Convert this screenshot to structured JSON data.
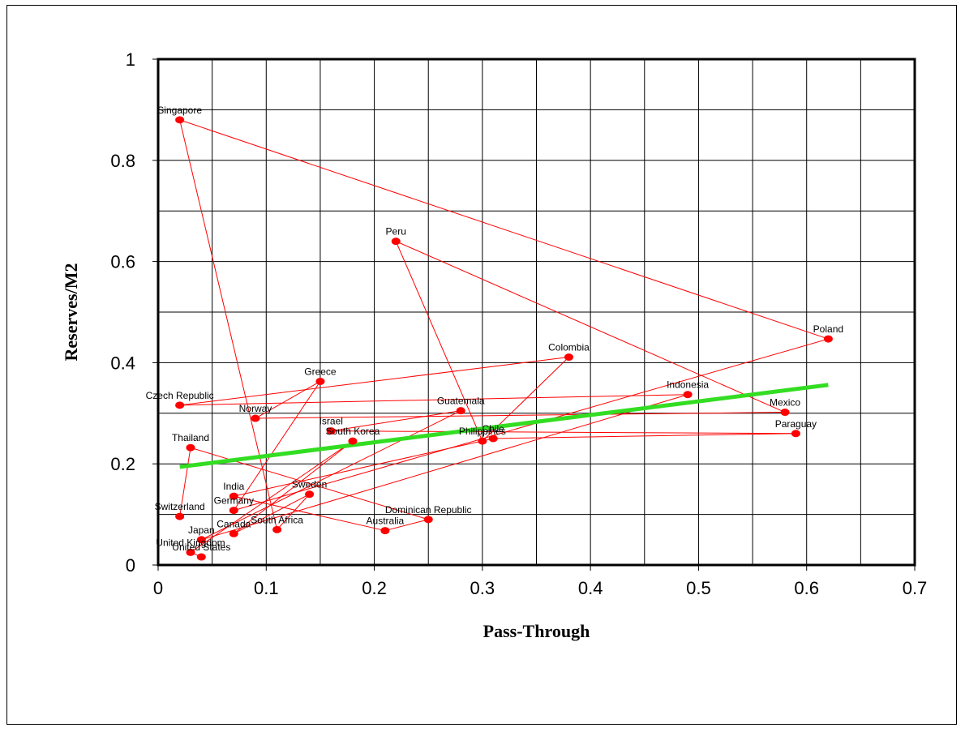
{
  "chart_data": {
    "type": "scatter",
    "title": "",
    "xlabel": "Pass-Through",
    "ylabel": "Reserves/M2",
    "xlim": [
      0,
      0.7
    ],
    "ylim": [
      0,
      1
    ],
    "x_ticks": [
      "0",
      "0.1",
      "0.2",
      "0.3",
      "0.4",
      "0.5",
      "0.6",
      "0.7"
    ],
    "y_ticks": [
      "0",
      "0.2",
      "0.4",
      "0.6",
      "0.8",
      "1"
    ],
    "grid": true,
    "legend": "none",
    "point_color": "#ff0000",
    "connector_color": "#ff0000",
    "trend_color": "#33dd22",
    "points": [
      {
        "label": "Singapore",
        "x": 0.02,
        "y": 0.88
      },
      {
        "label": "Poland",
        "x": 0.62,
        "y": 0.447
      },
      {
        "label": "Czech Republic",
        "x": 0.02,
        "y": 0.316
      },
      {
        "label": "Colombia",
        "x": 0.38,
        "y": 0.411
      },
      {
        "label": "Peru",
        "x": 0.22,
        "y": 0.64
      },
      {
        "label": "Paraguay",
        "x": 0.59,
        "y": 0.26
      },
      {
        "label": "Norway",
        "x": 0.09,
        "y": 0.29
      },
      {
        "label": "Mexico",
        "x": 0.58,
        "y": 0.302
      },
      {
        "label": "Greece",
        "x": 0.15,
        "y": 0.363
      },
      {
        "label": "Guatemala",
        "x": 0.28,
        "y": 0.305
      },
      {
        "label": "Indonesia",
        "x": 0.49,
        "y": 0.337
      },
      {
        "label": "Israel",
        "x": 0.16,
        "y": 0.265
      },
      {
        "label": "South Korea",
        "x": 0.18,
        "y": 0.245
      },
      {
        "label": "Philippines",
        "x": 0.3,
        "y": 0.245
      },
      {
        "label": "Chile",
        "x": 0.31,
        "y": 0.25
      },
      {
        "label": "Thailand",
        "x": 0.03,
        "y": 0.232
      },
      {
        "label": "Switzerland",
        "x": 0.02,
        "y": 0.096
      },
      {
        "label": "India",
        "x": 0.07,
        "y": 0.136
      },
      {
        "label": "Germany",
        "x": 0.07,
        "y": 0.108
      },
      {
        "label": "Sweden",
        "x": 0.14,
        "y": 0.14
      },
      {
        "label": "Dominican Republic",
        "x": 0.25,
        "y": 0.09
      },
      {
        "label": "Australia",
        "x": 0.21,
        "y": 0.068
      },
      {
        "label": "South Africa",
        "x": 0.11,
        "y": 0.07
      },
      {
        "label": "Canada",
        "x": 0.07,
        "y": 0.062
      },
      {
        "label": "Japan",
        "x": 0.04,
        "y": 0.05
      },
      {
        "label": "United Kingdom",
        "x": 0.03,
        "y": 0.025
      },
      {
        "label": "United States",
        "x": 0.04,
        "y": 0.016
      }
    ],
    "connector_order": [
      "Switzerland",
      "Thailand",
      "Dominican Republic",
      "Australia",
      "India",
      "Chile",
      "Paraguay",
      "Israel",
      "Guatemala",
      "Japan",
      "Indonesia",
      "Czech Republic",
      "Colombia",
      "Philippines",
      "Peru",
      "Mexico",
      "Norway",
      "Greece",
      "Germany",
      "Poland",
      "Singapore",
      "South Africa",
      "Sweden",
      "Canada",
      "South Korea",
      "United Kingdom",
      "United States"
    ],
    "trend_line": {
      "x": [
        0.02,
        0.62
      ],
      "y": [
        0.194,
        0.356
      ]
    }
  }
}
